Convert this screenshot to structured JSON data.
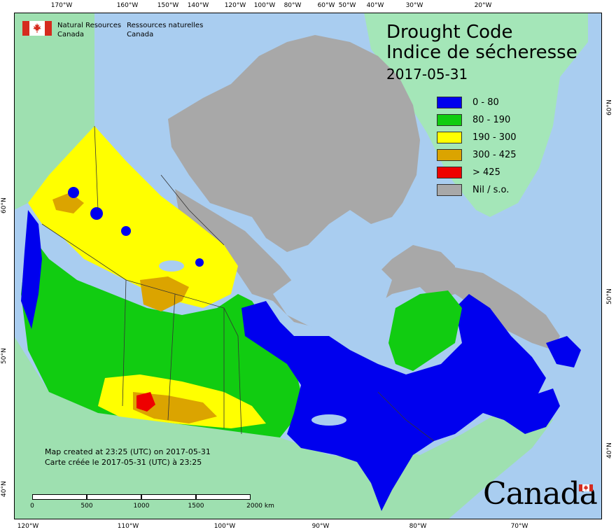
{
  "map": {
    "title_en": "Drought Code",
    "title_fr": "Indice de sécheresse",
    "date": "2017-05-31",
    "legend": [
      {
        "label": "0 - 80",
        "color": "#0000ee"
      },
      {
        "label": "80 - 190",
        "color": "#11cc11"
      },
      {
        "label": "190 - 300",
        "color": "#ffff00"
      },
      {
        "label": "300 - 425",
        "color": "#dba400"
      },
      {
        "label": "> 425",
        "color": "#ee0000"
      },
      {
        "label": "Nil / s.o.",
        "color": "#a8a8a8"
      }
    ],
    "colors": {
      "ocean": "#a9cdf0",
      "land_other": "#9ee0b0",
      "greenland": "#a4e6b8",
      "frame": "#000000"
    },
    "longitude_labels_top": [
      "170°W",
      "160°W",
      "150°W",
      "140°W",
      "120°W",
      "100°W",
      "80°W",
      "60°W",
      "50°W",
      "40°W",
      "30°W",
      "20°W"
    ],
    "longitude_labels_bottom": [
      "120°W",
      "110°W",
      "100°W",
      "90°W",
      "80°W",
      "70°W"
    ],
    "latitude_labels_left": [
      "60°N",
      "50°N",
      "40°N"
    ],
    "latitude_labels_right": [
      "60°N",
      "50°N",
      "40°N"
    ]
  },
  "agency": {
    "name_en_1": "Natural Resources",
    "name_en_2": "Canada",
    "name_fr_1": "Ressources naturelles",
    "name_fr_2": "Canada",
    "icon": "canada-flag-icon"
  },
  "footer": {
    "created_en": "Map created at 23:25 (UTC) on 2017-05-31",
    "created_fr": "Carte créée le 2017-05-31 (UTC) à 23:25",
    "scale_labels": [
      "0",
      "500",
      "1000",
      "1500",
      "2000 km"
    ],
    "wordmark": "Canada"
  }
}
